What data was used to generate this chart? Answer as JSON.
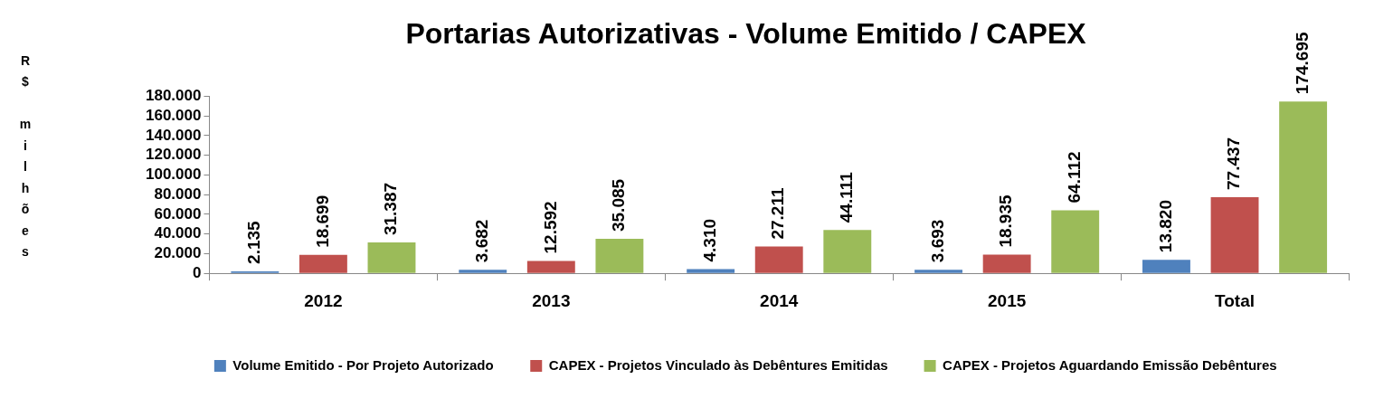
{
  "chart_data": {
    "type": "bar",
    "title": "Portarias Autorizativas - Volume Emitido / CAPEX",
    "ylabel": "R$ milhões",
    "categories": [
      "2012",
      "2013",
      "2014",
      "2015",
      "Total"
    ],
    "series": [
      {
        "name": "Volume Emitido - Por Projeto Autorizado",
        "color": "#4f81bd",
        "values": [
          2135,
          3682,
          4310,
          3693,
          13820
        ],
        "value_labels": [
          "2.135",
          "3.682",
          "4.310",
          "3.693",
          "13.820"
        ]
      },
      {
        "name": "CAPEX - Projetos Vinculado às Debêntures Emitidas",
        "color": "#c0504d",
        "values": [
          18699,
          12592,
          27211,
          18935,
          77437
        ],
        "value_labels": [
          "18.699",
          "12.592",
          "27.211",
          "18.935",
          "77.437"
        ]
      },
      {
        "name": "CAPEX - Projetos Aguardando Emissão Debêntures",
        "color": "#9bbb59",
        "values": [
          31387,
          35085,
          44111,
          64112,
          174695
        ],
        "value_labels": [
          "31.387",
          "35.085",
          "44.111",
          "64.112",
          "174.695"
        ]
      }
    ],
    "ylim": [
      0,
      180000
    ],
    "yticks": [
      0,
      {
        "value": 20000,
        "label": "20.000"
      },
      {
        "value": 40000,
        "label": "40.000"
      },
      {
        "value": 60000,
        "label": "60.000"
      },
      {
        "value": 80000,
        "label": "80.000"
      },
      {
        "value": 100000,
        "label": "100.000"
      },
      {
        "value": 120000,
        "label": "120.000"
      },
      {
        "value": 140000,
        "label": "140.000"
      },
      {
        "value": 160000,
        "label": "160.000"
      },
      {
        "value": 180000,
        "label": "180.000"
      }
    ],
    "grid": false,
    "legend": "bottom"
  }
}
